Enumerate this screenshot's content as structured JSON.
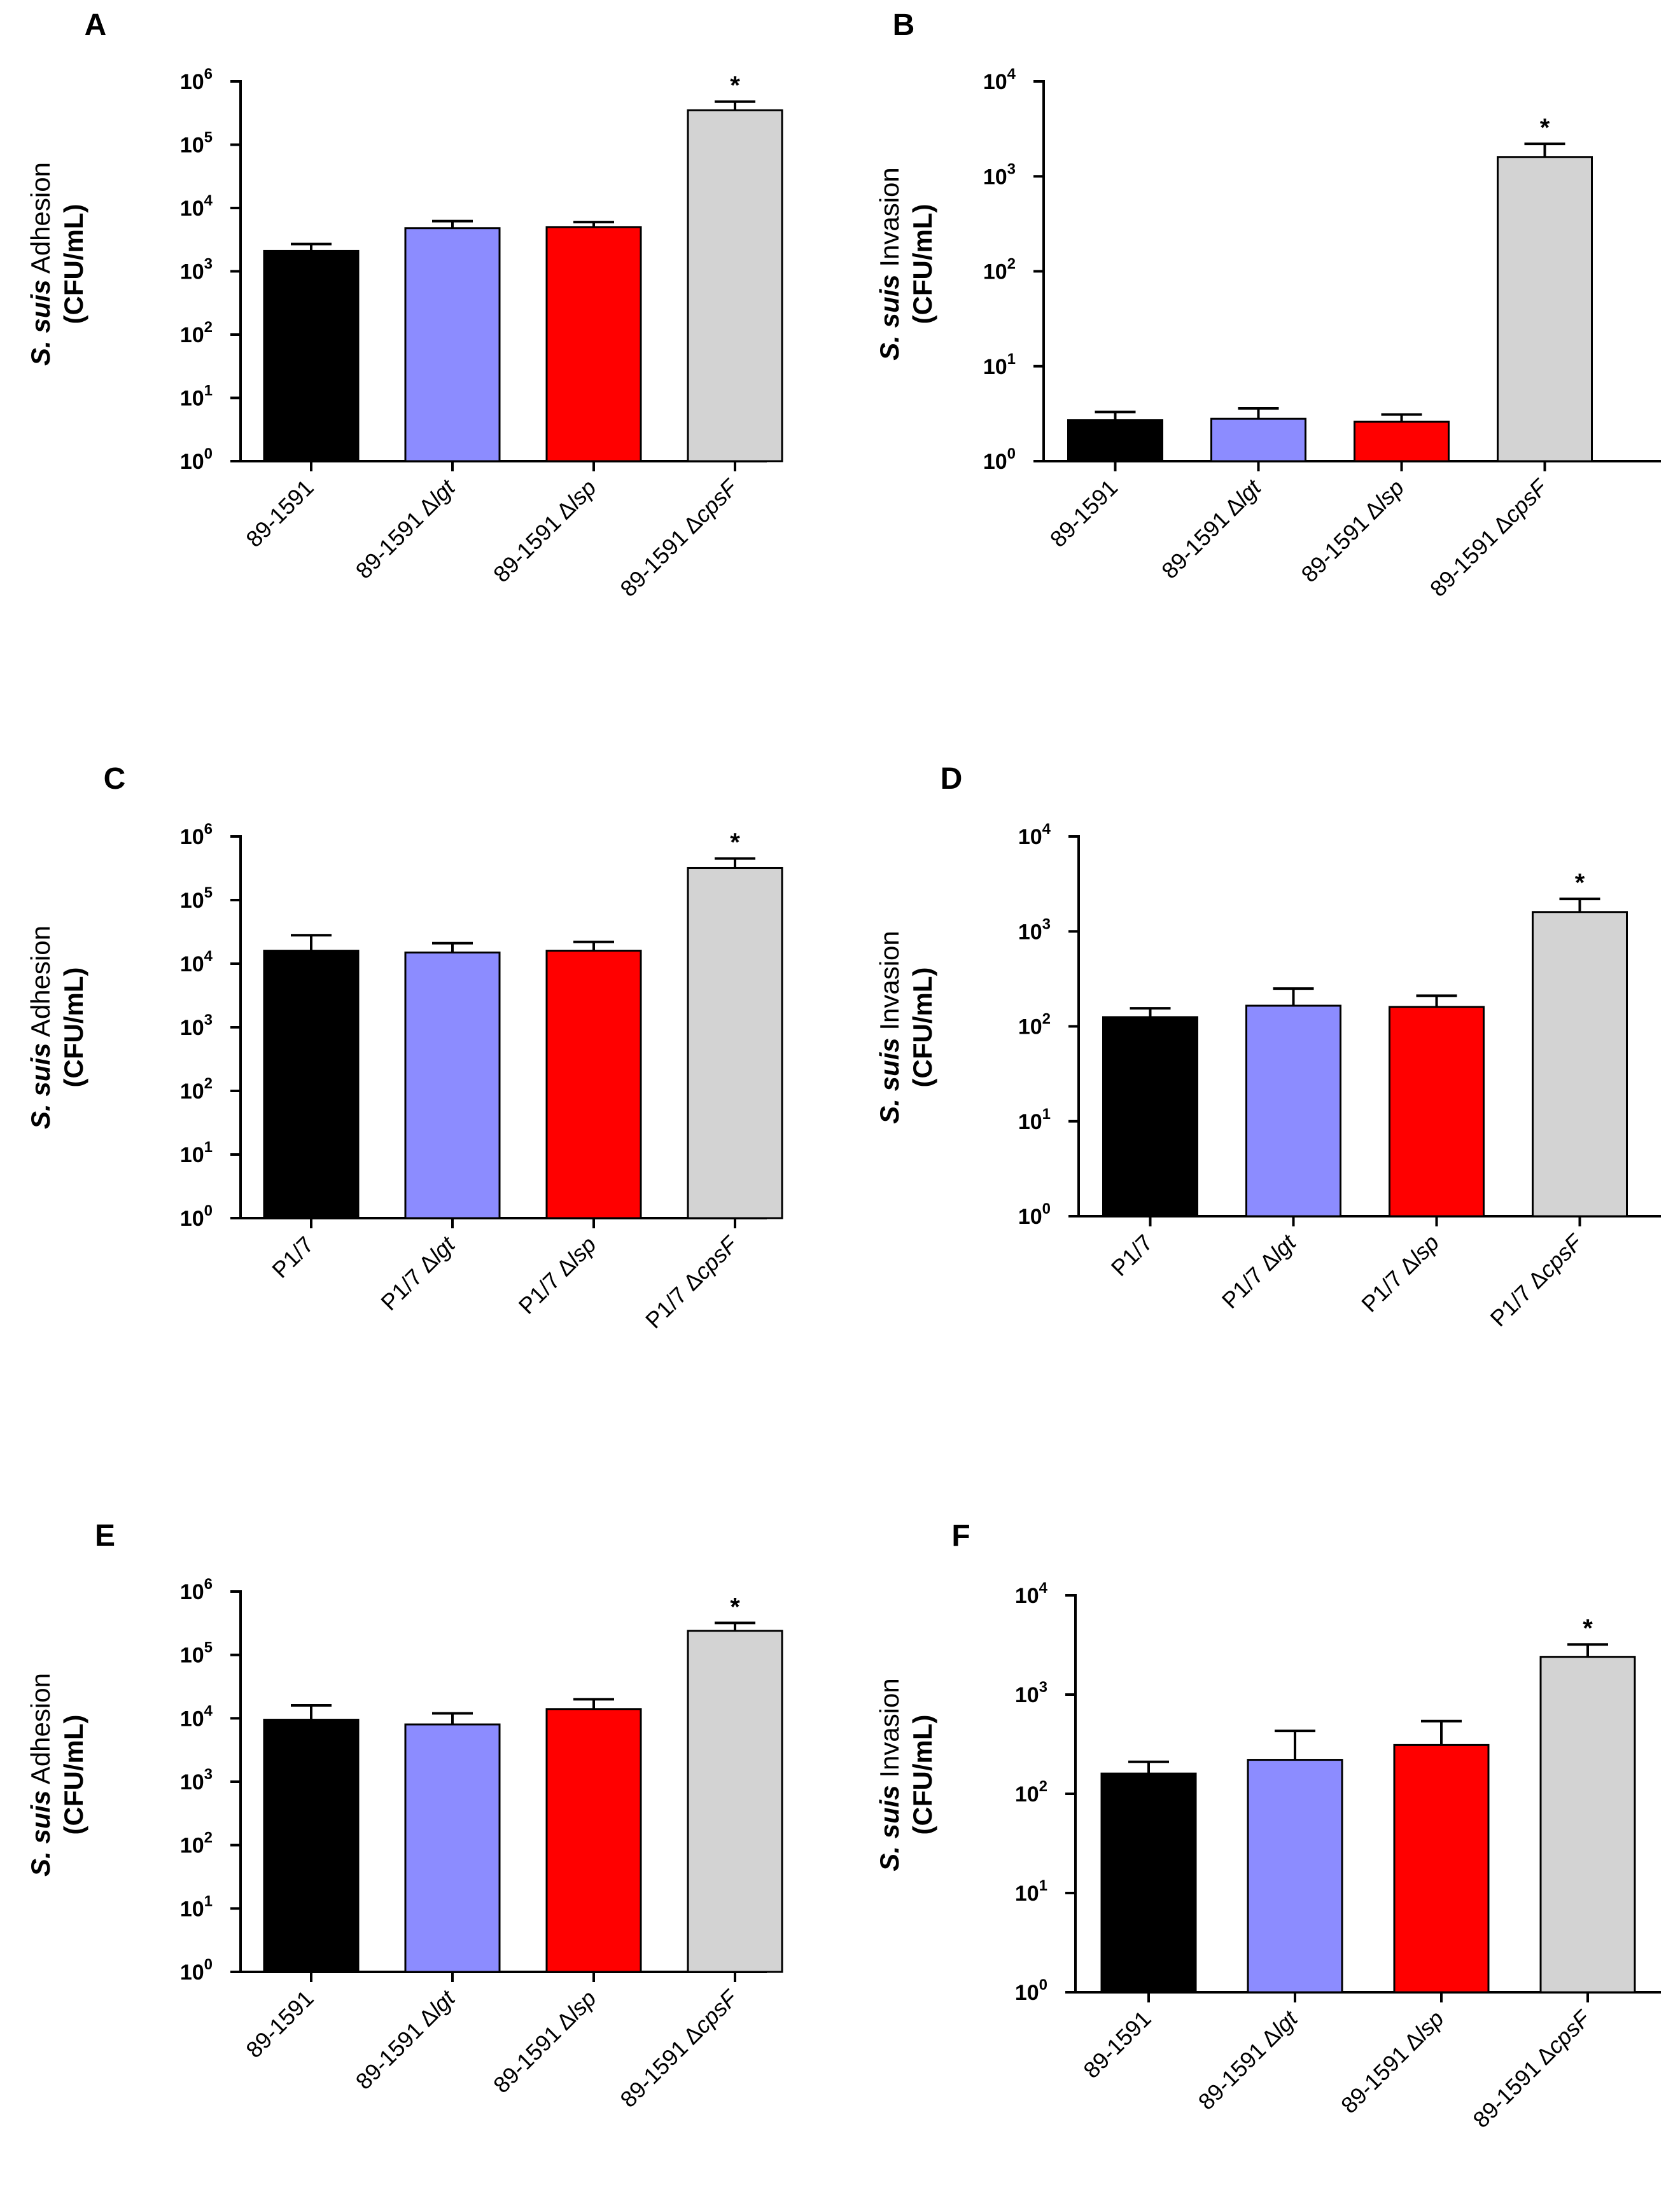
{
  "chart_data": [
    {
      "panel": "A",
      "type": "bar",
      "yscale": "log",
      "ylabel_italic": "S. suis",
      "ylabel_rest": " Adhesion",
      "ylabel_unit": "(CFU/mL)",
      "ylim": [
        1,
        1000000
      ],
      "yticks": [
        {
          "base": "10",
          "exp": "0"
        },
        {
          "base": "10",
          "exp": "1"
        },
        {
          "base": "10",
          "exp": "2"
        },
        {
          "base": "10",
          "exp": "3"
        },
        {
          "base": "10",
          "exp": "4"
        },
        {
          "base": "10",
          "exp": "5"
        },
        {
          "base": "10",
          "exp": "6"
        }
      ],
      "categories": [
        {
          "prefix": "89-1591",
          "mutant": ""
        },
        {
          "prefix": "89-1591 Δ",
          "mutant": "lgt"
        },
        {
          "prefix": "89-1591 Δ",
          "mutant": "lsp"
        },
        {
          "prefix": "89-1591 Δ",
          "mutant": "cpsF"
        }
      ],
      "values": [
        2100,
        4800,
        5000,
        350000
      ],
      "errors": [
        2700,
        6200,
        6000,
        480000
      ],
      "colors": [
        "#000000",
        "#8c8cff",
        "#ff0000",
        "#d3d3d3"
      ],
      "significance": [
        "",
        "",
        "",
        "*"
      ]
    },
    {
      "panel": "B",
      "type": "bar",
      "yscale": "log",
      "ylabel_italic": "S. suis",
      "ylabel_rest": " Invasion",
      "ylabel_unit": "(CFU/mL)",
      "ylim": [
        1,
        10000
      ],
      "yticks": [
        {
          "base": "10",
          "exp": "0"
        },
        {
          "base": "10",
          "exp": "1"
        },
        {
          "base": "10",
          "exp": "2"
        },
        {
          "base": "10",
          "exp": "3"
        },
        {
          "base": "10",
          "exp": "4"
        }
      ],
      "categories": [
        {
          "prefix": "89-1591",
          "mutant": ""
        },
        {
          "prefix": "89-1591 Δ",
          "mutant": "lgt"
        },
        {
          "prefix": "89-1591 Δ",
          "mutant": "lsp"
        },
        {
          "prefix": "89-1591 Δ",
          "mutant": "cpsF"
        }
      ],
      "values": [
        2.7,
        2.8,
        2.6,
        1600
      ],
      "errors": [
        3.3,
        3.6,
        3.1,
        2200
      ],
      "colors": [
        "#000000",
        "#8c8cff",
        "#ff0000",
        "#d3d3d3"
      ],
      "significance": [
        "",
        "",
        "",
        "*"
      ]
    },
    {
      "panel": "C",
      "type": "bar",
      "yscale": "log",
      "ylabel_italic": "S. suis",
      "ylabel_rest": " Adhesion",
      "ylabel_unit": "(CFU/mL)",
      "ylim": [
        1,
        1000000
      ],
      "yticks": [
        {
          "base": "10",
          "exp": "0"
        },
        {
          "base": "10",
          "exp": "1"
        },
        {
          "base": "10",
          "exp": "2"
        },
        {
          "base": "10",
          "exp": "3"
        },
        {
          "base": "10",
          "exp": "4"
        },
        {
          "base": "10",
          "exp": "5"
        },
        {
          "base": "10",
          "exp": "6"
        }
      ],
      "categories": [
        {
          "prefix": "P1/7",
          "mutant": ""
        },
        {
          "prefix": "P1/7  Δ",
          "mutant": "lgt"
        },
        {
          "prefix": "P1/7  Δ",
          "mutant": "lsp"
        },
        {
          "prefix": "P1/7  Δ",
          "mutant": "cpsF"
        }
      ],
      "values": [
        16000,
        15000,
        16000,
        320000
      ],
      "errors": [
        28000,
        21000,
        22000,
        450000
      ],
      "colors": [
        "#000000",
        "#8c8cff",
        "#ff0000",
        "#d3d3d3"
      ],
      "significance": [
        "",
        "",
        "",
        "*"
      ]
    },
    {
      "panel": "D",
      "type": "bar",
      "yscale": "log",
      "ylabel_italic": "S. suis",
      "ylabel_rest": " Invasion",
      "ylabel_unit": "(CFU/mL)",
      "ylim": [
        1,
        10000
      ],
      "yticks": [
        {
          "base": "10",
          "exp": "0"
        },
        {
          "base": "10",
          "exp": "1"
        },
        {
          "base": "10",
          "exp": "2"
        },
        {
          "base": "10",
          "exp": "3"
        },
        {
          "base": "10",
          "exp": "4"
        }
      ],
      "categories": [
        {
          "prefix": "P1/7",
          "mutant": ""
        },
        {
          "prefix": "P1/7  Δ",
          "mutant": "lgt"
        },
        {
          "prefix": "P1/7  Δ",
          "mutant": "lsp"
        },
        {
          "prefix": "P1/7  Δ",
          "mutant": "cpsF"
        }
      ],
      "values": [
        125,
        165,
        160,
        1600
      ],
      "errors": [
        155,
        250,
        210,
        2200
      ],
      "colors": [
        "#000000",
        "#8c8cff",
        "#ff0000",
        "#d3d3d3"
      ],
      "significance": [
        "",
        "",
        "",
        "*"
      ]
    },
    {
      "panel": "E",
      "type": "bar",
      "yscale": "log",
      "ylabel_italic": "S. suis",
      "ylabel_rest": " Adhesion",
      "ylabel_unit": "(CFU/mL)",
      "ylim": [
        1,
        1000000
      ],
      "yticks": [
        {
          "base": "10",
          "exp": "0"
        },
        {
          "base": "10",
          "exp": "1"
        },
        {
          "base": "10",
          "exp": "2"
        },
        {
          "base": "10",
          "exp": "3"
        },
        {
          "base": "10",
          "exp": "4"
        },
        {
          "base": "10",
          "exp": "5"
        },
        {
          "base": "10",
          "exp": "6"
        }
      ],
      "categories": [
        {
          "prefix": "89-1591",
          "mutant": ""
        },
        {
          "prefix": "89-1591 Δ",
          "mutant": "lgt"
        },
        {
          "prefix": "89-1591 Δ",
          "mutant": "lsp"
        },
        {
          "prefix": "89-1591 Δ",
          "mutant": "cpsF"
        }
      ],
      "values": [
        9500,
        8000,
        14000,
        240000
      ],
      "errors": [
        16000,
        12000,
        20000,
        320000
      ],
      "colors": [
        "#000000",
        "#8c8cff",
        "#ff0000",
        "#d3d3d3"
      ],
      "significance": [
        "",
        "",
        "",
        "*"
      ]
    },
    {
      "panel": "F",
      "type": "bar",
      "yscale": "log",
      "ylabel_italic": "S. suis",
      "ylabel_rest": " Invasion",
      "ylabel_unit": "(CFU/mL)",
      "ylim": [
        1,
        10000
      ],
      "yticks": [
        {
          "base": "10",
          "exp": "0"
        },
        {
          "base": "10",
          "exp": "1"
        },
        {
          "base": "10",
          "exp": "2"
        },
        {
          "base": "10",
          "exp": "3"
        },
        {
          "base": "10",
          "exp": "4"
        }
      ],
      "categories": [
        {
          "prefix": "89-1591",
          "mutant": ""
        },
        {
          "prefix": "89-1591 Δ",
          "mutant": "lgt"
        },
        {
          "prefix": "89-1591 Δ",
          "mutant": "lsp"
        },
        {
          "prefix": "89-1591 Δ",
          "mutant": "cpsF"
        }
      ],
      "values": [
        160,
        220,
        310,
        2400
      ],
      "errors": [
        210,
        430,
        540,
        3200
      ],
      "colors": [
        "#000000",
        "#8c8cff",
        "#ff0000",
        "#d3d3d3"
      ],
      "significance": [
        "",
        "",
        "",
        "*"
      ]
    }
  ]
}
